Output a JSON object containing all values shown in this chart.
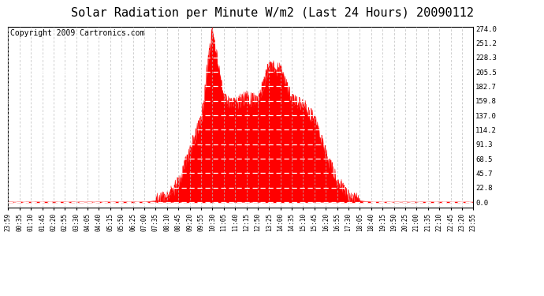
{
  "title": "Solar Radiation per Minute W/m2 (Last 24 Hours) 20090112",
  "copyright": "Copyright 2009 Cartronics.com",
  "y_ticks": [
    0.0,
    22.8,
    45.7,
    68.5,
    91.3,
    114.2,
    137.0,
    159.8,
    182.7,
    205.5,
    228.3,
    251.2,
    274.0
  ],
  "y_max": 274.0,
  "fill_color": "#ff0000",
  "bg_color": "#ffffff",
  "dashed_line_color": "#ff0000",
  "title_fontsize": 11,
  "copyright_fontsize": 7,
  "x_labels": [
    "23:59",
    "00:35",
    "01:10",
    "01:45",
    "02:20",
    "02:55",
    "03:30",
    "04:05",
    "04:40",
    "05:15",
    "05:50",
    "06:25",
    "07:00",
    "07:35",
    "08:10",
    "08:45",
    "09:20",
    "09:55",
    "10:30",
    "11:05",
    "11:40",
    "12:15",
    "12:50",
    "13:25",
    "14:00",
    "14:35",
    "15:10",
    "15:45",
    "16:20",
    "16:55",
    "17:30",
    "18:05",
    "18:40",
    "19:15",
    "19:50",
    "20:25",
    "21:00",
    "21:35",
    "22:10",
    "22:45",
    "23:20",
    "23:55"
  ],
  "raw_y": [
    0,
    0,
    0,
    0,
    0,
    0,
    0,
    0,
    0,
    0,
    0,
    0,
    0,
    2,
    8,
    30,
    80,
    130,
    274,
    160,
    155,
    165,
    158,
    215,
    208,
    160,
    153,
    130,
    75,
    35,
    8,
    2,
    0,
    0,
    0,
    0,
    0,
    0,
    0,
    0,
    0,
    0
  ]
}
